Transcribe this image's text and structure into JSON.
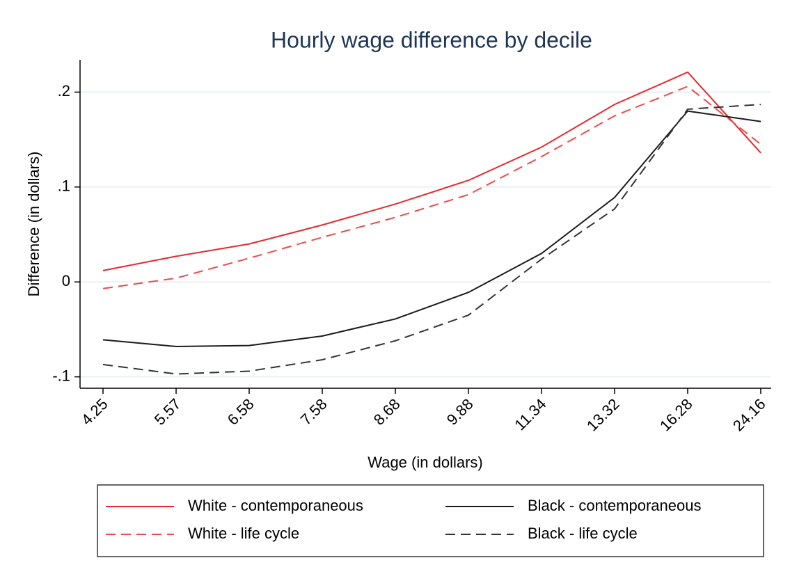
{
  "chart_data": {
    "type": "line",
    "title": "Hourly wage difference by decile",
    "xlabel": "Wage (in dollars)",
    "ylabel": "Difference (in dollars)",
    "categories": [
      "4.25",
      "5.57",
      "6.58",
      "7.58",
      "8.68",
      "9.88",
      "11.34",
      "13.32",
      "16.28",
      "24.16"
    ],
    "series": [
      {
        "name": "White - contemporaneous",
        "color": "#e8282d",
        "dash": false,
        "values": [
          0.012,
          0.027,
          0.04,
          0.06,
          0.082,
          0.107,
          0.142,
          0.187,
          0.221,
          0.136
        ]
      },
      {
        "name": "White - life cycle",
        "color": "#ee4a4a",
        "dash": true,
        "values": [
          -0.007,
          0.004,
          0.025,
          0.047,
          0.068,
          0.092,
          0.132,
          0.175,
          0.206,
          0.145
        ]
      },
      {
        "name": "Black - contemporaneous",
        "color": "#1a1a1a",
        "dash": false,
        "values": [
          -0.061,
          -0.068,
          -0.067,
          -0.057,
          -0.039,
          -0.011,
          0.03,
          0.089,
          0.18,
          0.169
        ]
      },
      {
        "name": "Black - life cycle",
        "color": "#333333",
        "dash": true,
        "values": [
          -0.087,
          -0.097,
          -0.094,
          -0.082,
          -0.062,
          -0.035,
          0.024,
          0.077,
          0.182,
          0.187
        ]
      }
    ],
    "ylim": [
      -0.112,
      0.234
    ],
    "yticks": [
      {
        "value": -0.1,
        "label": "-.1"
      },
      0,
      {
        "value": 0.1,
        "label": ".1"
      },
      {
        "value": 0.2,
        "label": ".2"
      }
    ],
    "grid": true,
    "legend": "bottom"
  }
}
